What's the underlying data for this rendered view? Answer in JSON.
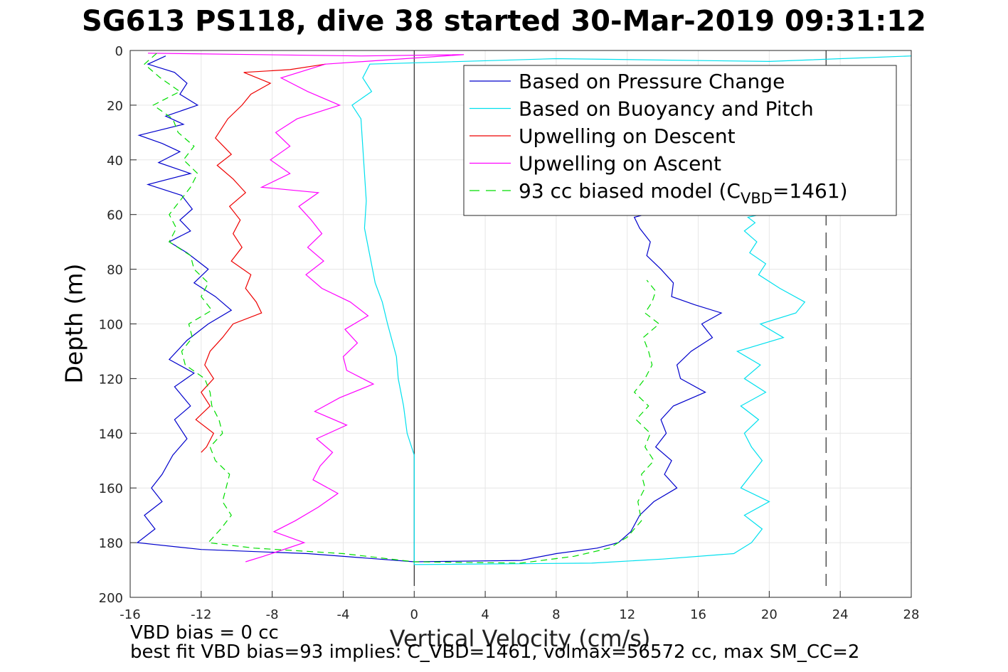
{
  "title": "SG613 PS118, dive 38 started 30-Mar-2019 09:31:12",
  "footer": {
    "line1": "VBD bias = 0 cc",
    "line2": "best fit VBD bias=93 implies: C_VBD=1461, volmax=56572 cc, max SM_CC=2"
  },
  "chart_data": {
    "type": "line",
    "title": "SG613 PS118, dive 38 started 30-Mar-2019 09:31:12",
    "xlabel": "Vertical Velocity (cm/s)",
    "ylabel": "Depth (m)",
    "xlim": [
      -16,
      28
    ],
    "ylim": [
      0,
      200
    ],
    "y_reversed": true,
    "grid": true,
    "legend_position": "top-right",
    "xticks": [
      -16,
      -12,
      -8,
      -4,
      0,
      4,
      8,
      12,
      16,
      20,
      24,
      28
    ],
    "yticks": [
      0,
      20,
      40,
      60,
      80,
      100,
      120,
      140,
      160,
      180,
      200
    ],
    "reference_lines": [
      {
        "axis": "x",
        "value": 0,
        "style": "solid",
        "color": "#000000"
      },
      {
        "axis": "x",
        "value": 23.2,
        "style": "dashed",
        "color": "#000000"
      }
    ],
    "series": [
      {
        "name": "Based on Pressure Change",
        "color": "#0000cc",
        "style": "solid",
        "points": [
          [
            -14,
            2
          ],
          [
            -15,
            5
          ],
          [
            -13.5,
            8
          ],
          [
            -12.8,
            12
          ],
          [
            -13.2,
            16
          ],
          [
            -12.2,
            20
          ],
          [
            -14,
            24
          ],
          [
            -13,
            27
          ],
          [
            -15.5,
            31
          ],
          [
            -14.2,
            34
          ],
          [
            -13.2,
            37
          ],
          [
            -14.4,
            41
          ],
          [
            -12.6,
            45
          ],
          [
            -15,
            49
          ],
          [
            -13.1,
            53
          ],
          [
            -12.5,
            58
          ],
          [
            -13.2,
            62
          ],
          [
            -12.6,
            66
          ],
          [
            -13.8,
            70
          ],
          [
            -12.8,
            74
          ],
          [
            -11.6,
            80
          ],
          [
            -12.4,
            85
          ],
          [
            -11.2,
            90
          ],
          [
            -10.3,
            95
          ],
          [
            -11.6,
            100
          ],
          [
            -12.8,
            106
          ],
          [
            -13.8,
            113
          ],
          [
            -12.4,
            118
          ],
          [
            -13.5,
            123
          ],
          [
            -12.6,
            130
          ],
          [
            -13.5,
            135
          ],
          [
            -12.8,
            142
          ],
          [
            -13.6,
            148
          ],
          [
            -14.2,
            155
          ],
          [
            -14.8,
            160
          ],
          [
            -14.2,
            165
          ],
          [
            -15.2,
            170
          ],
          [
            -14.6,
            175
          ],
          [
            -15.6,
            180
          ],
          [
            -12,
            182.5
          ],
          [
            -6,
            184
          ],
          [
            0,
            187
          ],
          [
            6,
            186.5
          ],
          [
            8,
            184
          ],
          [
            10.3,
            182
          ],
          [
            11.5,
            180
          ],
          [
            12.2,
            176
          ],
          [
            12.7,
            170
          ],
          [
            13.5,
            165
          ],
          [
            14.8,
            160
          ],
          [
            14.1,
            155
          ],
          [
            14.5,
            150
          ],
          [
            13.6,
            145
          ],
          [
            14.2,
            140
          ],
          [
            13.9,
            135
          ],
          [
            14.6,
            130
          ],
          [
            16.4,
            125
          ],
          [
            15,
            120
          ],
          [
            14.8,
            115
          ],
          [
            15.6,
            110
          ],
          [
            16.8,
            105
          ],
          [
            16.2,
            100
          ],
          [
            17.3,
            96
          ],
          [
            15.8,
            93
          ],
          [
            14.5,
            90
          ],
          [
            14.6,
            85
          ],
          [
            13.9,
            80
          ],
          [
            13.1,
            75
          ],
          [
            13.3,
            70
          ],
          [
            12.7,
            65
          ],
          [
            12.4,
            61
          ],
          [
            13,
            60
          ]
        ]
      },
      {
        "name": "Based on Buoyancy and Pitch",
        "color": "#00e0ee",
        "style": "solid",
        "points": [
          [
            28,
            2
          ],
          [
            20,
            4
          ],
          [
            8,
            3
          ],
          [
            -2.5,
            5
          ],
          [
            -2.9,
            10
          ],
          [
            -2.4,
            15
          ],
          [
            -3.5,
            20
          ],
          [
            -3,
            25
          ],
          [
            -2.9,
            35
          ],
          [
            -2.8,
            45
          ],
          [
            -2.7,
            55
          ],
          [
            -2.8,
            65
          ],
          [
            -2.5,
            75
          ],
          [
            -2.2,
            85
          ],
          [
            -1.8,
            92
          ],
          [
            -1.5,
            100
          ],
          [
            -1,
            112
          ],
          [
            -0.9,
            120
          ],
          [
            -0.6,
            130
          ],
          [
            -0.4,
            140
          ],
          [
            0,
            148
          ],
          [
            0,
            188
          ],
          [
            10,
            187.5
          ],
          [
            14,
            186
          ],
          [
            18,
            184
          ],
          [
            19,
            180
          ],
          [
            19.6,
            175
          ],
          [
            18.6,
            170
          ],
          [
            20,
            165
          ],
          [
            18.4,
            160
          ],
          [
            19,
            155
          ],
          [
            19.6,
            150
          ],
          [
            19,
            145
          ],
          [
            18.6,
            140
          ],
          [
            19.4,
            135
          ],
          [
            18.4,
            130
          ],
          [
            19.8,
            125
          ],
          [
            18.6,
            120
          ],
          [
            19.5,
            115
          ],
          [
            18.2,
            110
          ],
          [
            20.8,
            105
          ],
          [
            19.5,
            100
          ],
          [
            21.5,
            96
          ],
          [
            22,
            92
          ],
          [
            20.6,
            87
          ],
          [
            19.4,
            82
          ],
          [
            19.8,
            78
          ],
          [
            18.9,
            74
          ],
          [
            19.3,
            70
          ],
          [
            18.6,
            66
          ],
          [
            19.2,
            63
          ],
          [
            18.8,
            61
          ],
          [
            19.5,
            60
          ]
        ]
      },
      {
        "name": "Upwelling on Descent",
        "color": "#ee0000",
        "style": "solid",
        "points": [
          [
            -5,
            5
          ],
          [
            -7,
            7
          ],
          [
            -9.6,
            8
          ],
          [
            -8.1,
            12
          ],
          [
            -9.2,
            16
          ],
          [
            -9.7,
            20
          ],
          [
            -10.5,
            25
          ],
          [
            -11.2,
            32
          ],
          [
            -10.3,
            38
          ],
          [
            -11.1,
            42
          ],
          [
            -10.2,
            47
          ],
          [
            -9.5,
            52
          ],
          [
            -10.4,
            57
          ],
          [
            -9.8,
            62
          ],
          [
            -10.2,
            67
          ],
          [
            -9.7,
            72
          ],
          [
            -10.3,
            77
          ],
          [
            -9.2,
            82
          ],
          [
            -9.5,
            87
          ],
          [
            -8.9,
            92
          ],
          [
            -8.6,
            96
          ],
          [
            -10.2,
            100
          ],
          [
            -10.8,
            105
          ],
          [
            -11.5,
            110
          ],
          [
            -11.8,
            115
          ],
          [
            -11.3,
            120
          ],
          [
            -12,
            125
          ],
          [
            -11.5,
            130
          ],
          [
            -12.3,
            135
          ],
          [
            -11.3,
            140
          ],
          [
            -11.7,
            145
          ],
          [
            -12,
            147
          ]
        ]
      },
      {
        "name": "Upwelling on Ascent",
        "color": "#ff00ff",
        "style": "solid",
        "points": [
          [
            -15,
            1
          ],
          [
            -3,
            2
          ],
          [
            2.8,
            1.5
          ],
          [
            -5,
            5
          ],
          [
            -7.5,
            10
          ],
          [
            -6,
            15
          ],
          [
            -4.2,
            20
          ],
          [
            -6.6,
            25
          ],
          [
            -7.8,
            30
          ],
          [
            -7,
            35
          ],
          [
            -8.1,
            40
          ],
          [
            -7,
            45
          ],
          [
            -8.6,
            50
          ],
          [
            -5.4,
            52
          ],
          [
            -6.5,
            57
          ],
          [
            -5.8,
            62
          ],
          [
            -5.2,
            67
          ],
          [
            -6,
            72
          ],
          [
            -5.1,
            77
          ],
          [
            -6.1,
            82
          ],
          [
            -5.2,
            87
          ],
          [
            -3.6,
            92
          ],
          [
            -2.6,
            97
          ],
          [
            -3.9,
            102
          ],
          [
            -3.2,
            107
          ],
          [
            -4,
            112
          ],
          [
            -3.8,
            117
          ],
          [
            -2.3,
            122
          ],
          [
            -4.2,
            127
          ],
          [
            -5.6,
            132
          ],
          [
            -3.8,
            137
          ],
          [
            -5.5,
            142
          ],
          [
            -4.6,
            147
          ],
          [
            -5.3,
            152
          ],
          [
            -5.7,
            157
          ],
          [
            -4.3,
            162
          ],
          [
            -5.4,
            167
          ],
          [
            -6.7,
            172
          ],
          [
            -7.9,
            176
          ],
          [
            -6.2,
            180
          ],
          [
            -8.5,
            185
          ],
          [
            -9.5,
            187
          ]
        ]
      },
      {
        "name": "93 cc biased model (C_VBD=1461)",
        "legend_prefix": "93 cc biased model (C",
        "legend_subscript": "VBD",
        "legend_suffix": "=1461)",
        "color": "#00dd00",
        "style": "dashed",
        "points": [
          [
            -14.5,
            1
          ],
          [
            -15.2,
            5
          ],
          [
            -14.3,
            10
          ],
          [
            -13.2,
            15
          ],
          [
            -14.7,
            20
          ],
          [
            -13.6,
            25
          ],
          [
            -13.3,
            30
          ],
          [
            -12.4,
            35
          ],
          [
            -13,
            40
          ],
          [
            -12.2,
            45
          ],
          [
            -12.6,
            50
          ],
          [
            -13.2,
            55
          ],
          [
            -13.8,
            60
          ],
          [
            -13.4,
            65
          ],
          [
            -13.8,
            70
          ],
          [
            -12.6,
            75
          ],
          [
            -12.4,
            80
          ],
          [
            -11.6,
            85
          ],
          [
            -12,
            90
          ],
          [
            -11.4,
            95
          ],
          [
            -12.7,
            100
          ],
          [
            -12.5,
            105
          ],
          [
            -13.1,
            110
          ],
          [
            -12.9,
            115
          ],
          [
            -11.8,
            120
          ],
          [
            -11.5,
            125
          ],
          [
            -11.4,
            130
          ],
          [
            -11,
            135
          ],
          [
            -10.8,
            140
          ],
          [
            -11.5,
            145
          ],
          [
            -11.2,
            150
          ],
          [
            -10.4,
            155
          ],
          [
            -10.6,
            160
          ],
          [
            -10.8,
            165
          ],
          [
            -10.3,
            170
          ],
          [
            -10.9,
            175
          ],
          [
            -11.6,
            180
          ],
          [
            -9,
            182
          ],
          [
            -4,
            184
          ],
          [
            0,
            187
          ],
          [
            6,
            187.5
          ],
          [
            9,
            185
          ],
          [
            11,
            182
          ],
          [
            12,
            178
          ],
          [
            12.8,
            172
          ],
          [
            12.6,
            165
          ],
          [
            13,
            160
          ],
          [
            12.8,
            155
          ],
          [
            13.5,
            150
          ],
          [
            13,
            145
          ],
          [
            13.3,
            140
          ],
          [
            12.5,
            135
          ],
          [
            13.2,
            130
          ],
          [
            12.4,
            125
          ],
          [
            13,
            120
          ],
          [
            13.4,
            115
          ],
          [
            13.2,
            110
          ],
          [
            12.9,
            105
          ],
          [
            13.8,
            100
          ],
          [
            13,
            96
          ],
          [
            13.4,
            92
          ],
          [
            13.6,
            88
          ],
          [
            13.1,
            84
          ]
        ]
      }
    ]
  }
}
